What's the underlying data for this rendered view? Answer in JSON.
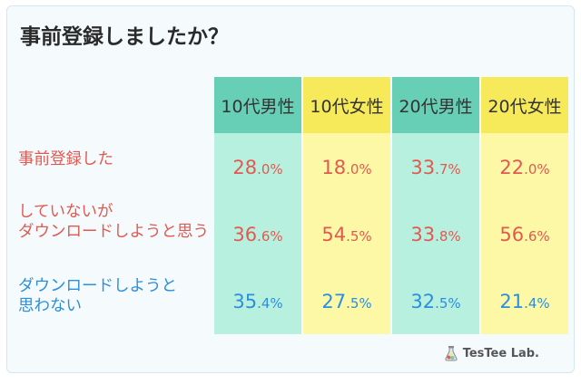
{
  "title": "事前登録しましたか？",
  "columns": [
    {
      "label": "10代男性",
      "bg": "#b8f0df",
      "head_bg": "#68cfb7"
    },
    {
      "label": "10代女性",
      "bg": "#fdf8a6",
      "head_bg": "#f6ea5b"
    },
    {
      "label": "20代男性",
      "bg": "#b8f0df",
      "head_bg": "#68cfb7"
    },
    {
      "label": "20代女性",
      "bg": "#fdf8a6",
      "head_bg": "#f6ea5b"
    }
  ],
  "rows": [
    {
      "label_lines": [
        "事前登録した"
      ],
      "color": "red"
    },
    {
      "label_lines": [
        "していないが",
        "ダウンロードしようと思う"
      ],
      "color": "red"
    },
    {
      "label_lines": [
        "ダウンロードしようと",
        "思わない"
      ],
      "color": "blue"
    }
  ],
  "chart_data": {
    "type": "table",
    "title": "事前登録しましたか？",
    "columns": [
      "10代男性",
      "10代女性",
      "20代男性",
      "20代女性"
    ],
    "row_labels": [
      "事前登録した",
      "していないが ダウンロードしようと思う",
      "ダウンロードしようと 思わない"
    ],
    "values": [
      [
        28.0,
        18.0,
        33.7,
        22.0
      ],
      [
        36.6,
        54.5,
        33.8,
        56.6
      ],
      [
        35.4,
        27.5,
        32.5,
        21.4
      ]
    ],
    "unit": "%"
  },
  "logo": {
    "text": "TesTee Lab.",
    "icon": "flask-icon"
  }
}
